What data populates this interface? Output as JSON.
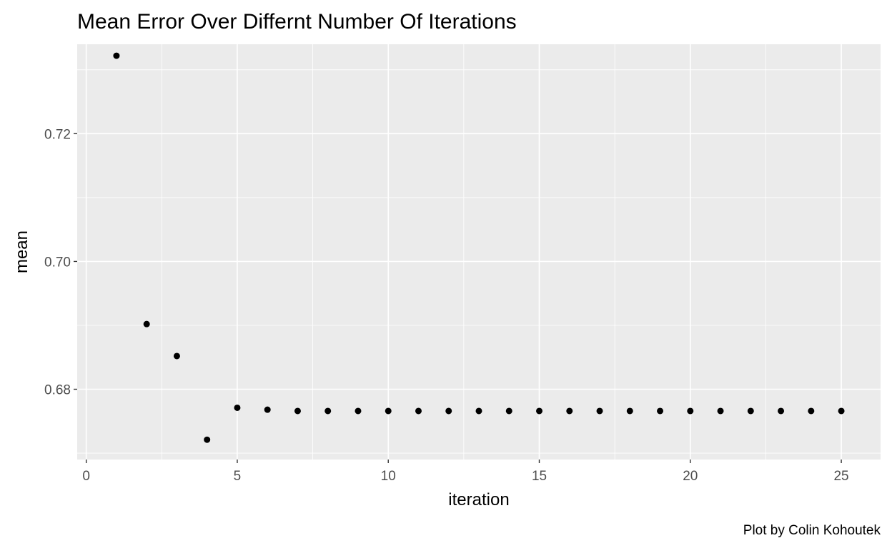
{
  "chart_data": {
    "type": "scatter",
    "title": "Mean Error Over Differnt Number Of Iterations",
    "caption": "Plot by Colin Kohoutek",
    "xlabel": "iteration",
    "ylabel": "mean",
    "xlim": [
      -0.3,
      26.3
    ],
    "ylim": [
      0.669,
      0.734
    ],
    "x_ticks": [
      0,
      5,
      10,
      15,
      20,
      25
    ],
    "x_tick_labels": [
      "0",
      "5",
      "10",
      "15",
      "20",
      "25"
    ],
    "y_ticks": [
      0.68,
      0.7,
      0.72
    ],
    "y_tick_labels": [
      "0.68",
      "0.70",
      "0.72"
    ],
    "grid": true,
    "panel_background": "#ebebeb",
    "grid_color": "#ffffff",
    "point_color": "#000000",
    "series": [
      {
        "x": [
          1,
          2,
          3,
          4,
          5,
          6,
          7,
          8,
          9,
          10,
          11,
          12,
          13,
          14,
          15,
          16,
          17,
          18,
          19,
          20,
          21,
          22,
          23,
          24,
          25
        ],
        "y": [
          0.7322,
          0.6902,
          0.6852,
          0.6721,
          0.6771,
          0.6768,
          0.6766,
          0.6766,
          0.6766,
          0.6766,
          0.6766,
          0.6766,
          0.6766,
          0.6766,
          0.6766,
          0.6766,
          0.6766,
          0.6766,
          0.6766,
          0.6766,
          0.6766,
          0.6766,
          0.6766,
          0.6766,
          0.6766
        ]
      }
    ]
  }
}
